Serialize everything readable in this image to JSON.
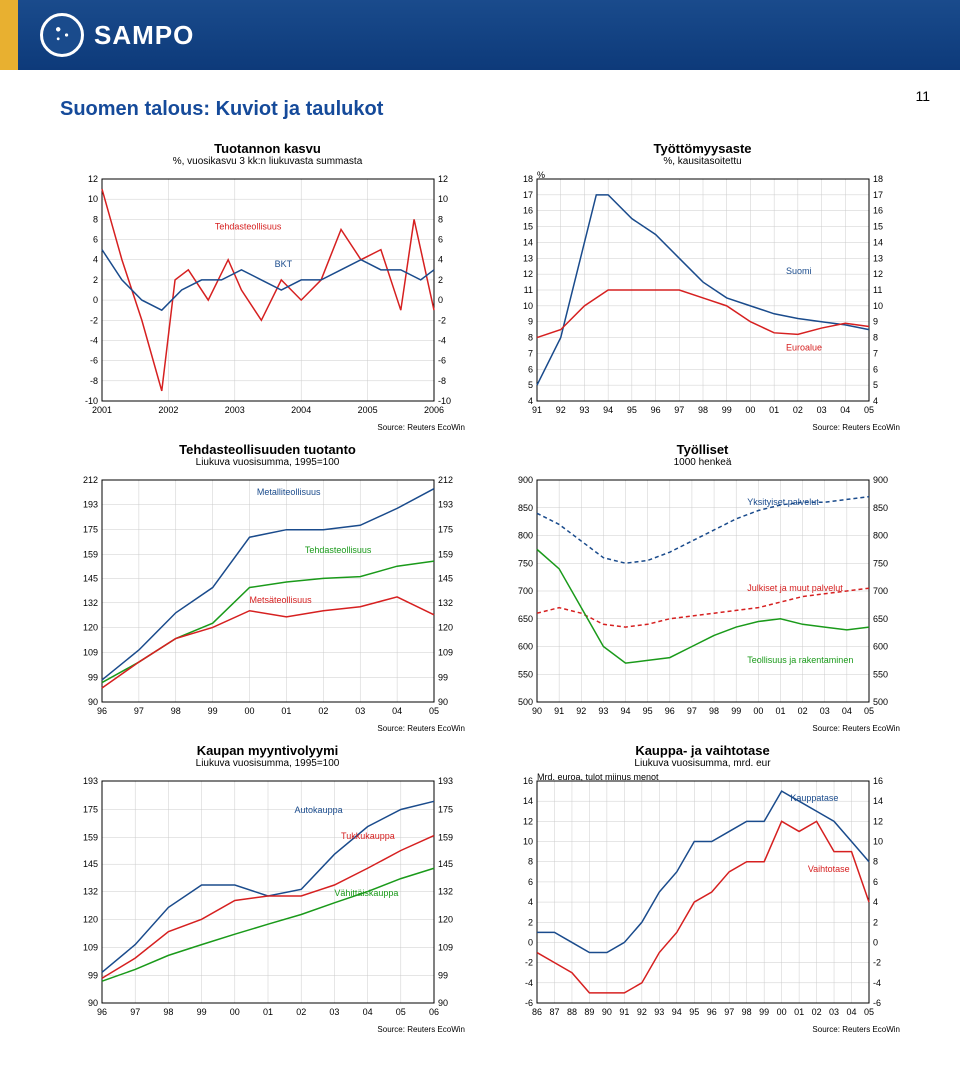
{
  "header": {
    "brand": "SAMPO"
  },
  "page_number": "11",
  "page_title": "Suomen talous: Kuviot ja taulukot",
  "source_text": "Source: Reuters EcoWin",
  "colors": {
    "header_bg": "#1a4b8c",
    "accent": "#e8b030",
    "title": "#154a9a",
    "grid": "#cccccc",
    "axis": "#000000",
    "blue": "#1a4b8c",
    "red": "#d62020",
    "green": "#1a9a1a"
  },
  "charts": {
    "tuotannon_kasvu": {
      "type": "line",
      "title": "Tuotannon kasvu",
      "subtitle": "%, vuosikasvu 3 kk:n liukuvasta summasta",
      "x_labels": [
        "2001",
        "2002",
        "2003",
        "2004",
        "2005",
        "2006"
      ],
      "y_ticks": [
        -10,
        -8,
        -6,
        -4,
        -2,
        0,
        2,
        4,
        6,
        8,
        10,
        12
      ],
      "ylim": [
        -10,
        12
      ],
      "series": [
        {
          "name": "Tehdasteollisuus",
          "label": "Tehdasteollisuus",
          "color": "#d62020",
          "x": [
            0,
            0.3,
            0.6,
            0.9,
            1.1,
            1.3,
            1.6,
            1.9,
            2.1,
            2.4,
            2.7,
            3.0,
            3.3,
            3.6,
            3.9,
            4.2,
            4.5,
            4.7,
            5.0
          ],
          "y": [
            11,
            4,
            -2,
            -9,
            2,
            3,
            0,
            4,
            1,
            -2,
            2,
            0,
            2,
            7,
            4,
            5,
            -1,
            8,
            -1
          ]
        },
        {
          "name": "BKT",
          "label": "BKT",
          "color": "#1a4b8c",
          "x": [
            0,
            0.3,
            0.6,
            0.9,
            1.2,
            1.5,
            1.8,
            2.1,
            2.4,
            2.7,
            3.0,
            3.3,
            3.6,
            3.9,
            4.2,
            4.5,
            4.8,
            5.0
          ],
          "y": [
            5,
            2,
            0,
            -1,
            1,
            2,
            2,
            3,
            2,
            1,
            2,
            2,
            3,
            4,
            3,
            3,
            2,
            3
          ]
        }
      ],
      "label_pos": {
        "Tehdasteollisuus": [
          1.7,
          7
        ],
        "BKT": [
          2.6,
          3.3
        ]
      }
    },
    "tyottomyys": {
      "type": "line",
      "title": "Työttömyysaste",
      "subtitle": "%, kausitasoitettu",
      "ylabel": "%",
      "x_labels": [
        "91",
        "92",
        "93",
        "94",
        "95",
        "96",
        "97",
        "98",
        "99",
        "00",
        "01",
        "02",
        "03",
        "04",
        "05"
      ],
      "y_ticks": [
        4,
        5,
        6,
        7,
        8,
        9,
        10,
        11,
        12,
        13,
        14,
        15,
        16,
        17,
        18
      ],
      "ylim": [
        4,
        18
      ],
      "series": [
        {
          "name": "Suomi",
          "label": "Suomi",
          "color": "#1a4b8c",
          "x": [
            0,
            1,
            2,
            2.5,
            3,
            4,
            5,
            6,
            7,
            8,
            9,
            10,
            11,
            12,
            13,
            14
          ],
          "y": [
            5,
            8,
            14,
            17,
            17,
            15.5,
            14.5,
            13,
            11.5,
            10.5,
            10,
            9.5,
            9.2,
            9,
            8.8,
            8.5
          ]
        },
        {
          "name": "Euroalue",
          "label": "Euroalue",
          "color": "#d62020",
          "x": [
            0,
            1,
            2,
            3,
            4,
            5,
            6,
            7,
            8,
            9,
            10,
            11,
            12,
            13,
            14
          ],
          "y": [
            8,
            8.5,
            10,
            11,
            11,
            11,
            11,
            10.5,
            10,
            9,
            8.3,
            8.2,
            8.6,
            8.9,
            8.7
          ]
        }
      ],
      "label_pos": {
        "Suomi": [
          10.5,
          12
        ],
        "Euroalue": [
          10.5,
          7.2
        ]
      }
    },
    "tehdas_tuotanto": {
      "type": "line-log",
      "title": "Tehdasteollisuuden tuotanto",
      "subtitle": "Liukuva vuosisumma, 1995=100",
      "x_labels": [
        "96",
        "97",
        "98",
        "99",
        "00",
        "01",
        "02",
        "03",
        "04",
        "05"
      ],
      "y_ticks": [
        90,
        99,
        109,
        120,
        132,
        145,
        159,
        175,
        193,
        212
      ],
      "ylim": [
        90,
        212
      ],
      "series": [
        {
          "name": "Metalliteollisuus",
          "label": "Metalliteollisuus",
          "color": "#1a4b8c",
          "x": [
            0,
            1,
            2,
            3,
            4,
            5,
            6,
            7,
            8,
            9
          ],
          "y": [
            98,
            110,
            127,
            140,
            170,
            175,
            175,
            178,
            190,
            205
          ]
        },
        {
          "name": "Tehdasteollisuus",
          "label": "Tehdasteollisuus",
          "color": "#1a9a1a",
          "x": [
            0,
            1,
            2,
            3,
            4,
            5,
            6,
            7,
            8,
            9
          ],
          "y": [
            97,
            105,
            115,
            122,
            140,
            143,
            145,
            146,
            152,
            155
          ]
        },
        {
          "name": "Metsateollisuus",
          "label": "Metsäteollisuus",
          "color": "#d62020",
          "x": [
            0,
            1,
            2,
            3,
            4,
            5,
            6,
            7,
            8,
            9
          ],
          "y": [
            95,
            105,
            115,
            120,
            128,
            125,
            128,
            130,
            135,
            126
          ]
        }
      ],
      "label_pos": {
        "Metalliteollisuus": [
          4.2,
          200
        ],
        "Tehdasteollisuus": [
          5.5,
          160
        ],
        "Metsäteollisuus": [
          4.0,
          132
        ]
      }
    },
    "tyolliset": {
      "type": "line",
      "title": "Työlliset",
      "subtitle": "1000 henkeä",
      "x_labels": [
        "90",
        "91",
        "92",
        "93",
        "94",
        "95",
        "96",
        "97",
        "98",
        "99",
        "00",
        "01",
        "02",
        "03",
        "04",
        "05"
      ],
      "y_ticks": [
        500,
        550,
        600,
        650,
        700,
        750,
        800,
        850,
        900
      ],
      "ylim": [
        500,
        900
      ],
      "series": [
        {
          "name": "Yksityiset",
          "label": "Yksityiset palvelut",
          "color": "#1a4b8c",
          "dash": "4 3",
          "x": [
            0,
            1,
            2,
            3,
            4,
            5,
            6,
            7,
            8,
            9,
            10,
            11,
            12,
            13,
            14,
            15
          ],
          "y": [
            840,
            820,
            790,
            760,
            750,
            755,
            770,
            790,
            810,
            830,
            845,
            855,
            860,
            860,
            865,
            870
          ]
        },
        {
          "name": "Julkiset",
          "label": "Julkiset ja muut palvelut",
          "color": "#d62020",
          "dash": "4 3",
          "x": [
            0,
            1,
            2,
            3,
            4,
            5,
            6,
            7,
            8,
            9,
            10,
            11,
            12,
            13,
            14,
            15
          ],
          "y": [
            660,
            670,
            660,
            640,
            635,
            640,
            650,
            655,
            660,
            665,
            670,
            680,
            690,
            695,
            700,
            705
          ]
        },
        {
          "name": "Teollisuus",
          "label": "Teollisuus ja rakentaminen",
          "color": "#1a9a1a",
          "x": [
            0,
            1,
            2,
            3,
            4,
            5,
            6,
            7,
            8,
            9,
            10,
            11,
            12,
            13,
            14,
            15
          ],
          "y": [
            775,
            740,
            670,
            600,
            570,
            575,
            580,
            600,
            620,
            635,
            645,
            650,
            640,
            635,
            630,
            635
          ]
        }
      ],
      "label_pos": {
        "Yksityiset palvelut": [
          9.5,
          855
        ],
        "Julkiset ja muut palvelut": [
          9.5,
          700
        ],
        "Teollisuus ja rakentaminen": [
          9.5,
          570
        ]
      }
    },
    "kaupan": {
      "type": "line-log",
      "title": "Kaupan myyntivolyymi",
      "subtitle": "Liukuva vuosisumma, 1995=100",
      "x_labels": [
        "96",
        "97",
        "98",
        "99",
        "00",
        "01",
        "02",
        "03",
        "04",
        "05",
        "06"
      ],
      "y_ticks": [
        90,
        99,
        109,
        120,
        132,
        145,
        159,
        175,
        193
      ],
      "ylim": [
        90,
        193
      ],
      "series": [
        {
          "name": "Autokauppa",
          "label": "Autokauppa",
          "color": "#1a4b8c",
          "x": [
            0,
            1,
            2,
            3,
            4,
            5,
            6,
            7,
            8,
            9,
            10
          ],
          "y": [
            100,
            110,
            125,
            135,
            135,
            130,
            133,
            150,
            165,
            175,
            180
          ]
        },
        {
          "name": "Tukkukauppa",
          "label": "Tukkukauppa",
          "color": "#d62020",
          "x": [
            0,
            1,
            2,
            3,
            4,
            5,
            6,
            7,
            8,
            9,
            10
          ],
          "y": [
            98,
            105,
            115,
            120,
            128,
            130,
            130,
            135,
            143,
            152,
            160
          ]
        },
        {
          "name": "Vahittaiskauppa",
          "label": "Vähittäiskauppa",
          "color": "#1a9a1a",
          "x": [
            0,
            1,
            2,
            3,
            4,
            5,
            6,
            7,
            8,
            9,
            10
          ],
          "y": [
            97,
            101,
            106,
            110,
            114,
            118,
            122,
            127,
            132,
            138,
            143
          ]
        }
      ],
      "label_pos": {
        "Autokauppa": [
          5.8,
          173
        ],
        "Tukkukauppa": [
          7.2,
          158
        ],
        "Vähittäiskauppa": [
          7.0,
          130
        ]
      }
    },
    "kauppa_vaihto": {
      "type": "line",
      "title": "Kauppa- ja vaihtotase",
      "subtitle": "Liukuva vuosisumma, mrd. eur",
      "ylabel": "Mrd. euroa, tulot miinus menot",
      "x_labels": [
        "86",
        "87",
        "88",
        "89",
        "90",
        "91",
        "92",
        "93",
        "94",
        "95",
        "96",
        "97",
        "98",
        "99",
        "00",
        "01",
        "02",
        "03",
        "04",
        "05"
      ],
      "y_ticks": [
        -6,
        -4,
        -2,
        0,
        2,
        4,
        6,
        8,
        10,
        12,
        14,
        16
      ],
      "ylim": [
        -6,
        16
      ],
      "series": [
        {
          "name": "Kauppatase",
          "label": "Kauppatase",
          "color": "#1a4b8c",
          "x": [
            0,
            1,
            2,
            3,
            4,
            5,
            6,
            7,
            8,
            9,
            10,
            11,
            12,
            13,
            14,
            15,
            16,
            17,
            18,
            19
          ],
          "y": [
            1,
            1,
            0,
            -1,
            -1,
            0,
            2,
            5,
            7,
            10,
            10,
            11,
            12,
            12,
            15,
            14,
            13,
            12,
            10,
            8
          ]
        },
        {
          "name": "Vaihtotase",
          "label": "Vaihtotase",
          "color": "#d62020",
          "x": [
            0,
            1,
            2,
            3,
            4,
            5,
            6,
            7,
            8,
            9,
            10,
            11,
            12,
            13,
            14,
            15,
            16,
            17,
            18,
            19
          ],
          "y": [
            -1,
            -2,
            -3,
            -5,
            -5,
            -5,
            -4,
            -1,
            1,
            4,
            5,
            7,
            8,
            8,
            12,
            11,
            12,
            9,
            9,
            4
          ]
        }
      ],
      "label_pos": {
        "Kauppatase": [
          14.5,
          14
        ],
        "Vaihtotase": [
          15.5,
          7
        ]
      }
    }
  }
}
